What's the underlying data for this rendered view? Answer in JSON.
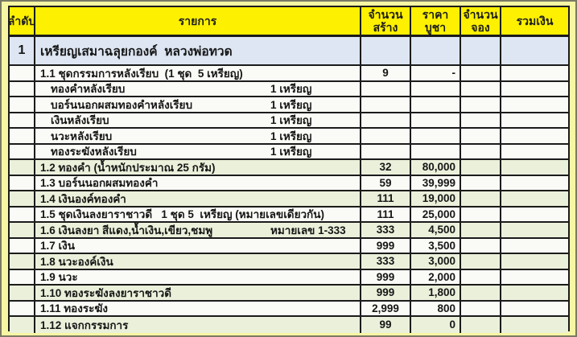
{
  "table": {
    "columns": {
      "no": "ลำดับ",
      "item": "รายการ",
      "made_line1": "จำนวน",
      "made_line2": "สร้าง",
      "price_line1": "ราคา",
      "price_line2": "บูชา",
      "reserved_line1": "จำนวน",
      "reserved_line2": "จอง",
      "total": "รวมเงิน"
    },
    "section": {
      "no": "1",
      "title": "เหรียญเสมาฉลุยกองค์  หลวงพ่อทวด"
    },
    "rows": [
      {
        "item": "1.1 ชุดกรรมการหลังเรียบ  (1 ชุด  5 เหรียญ)",
        "qty": "",
        "made": "9",
        "price": "-",
        "reserved": "",
        "total": "",
        "shade": "plain",
        "level": 1
      },
      {
        "item": "ทองคำหลังเรียบ",
        "qty": "1 เหรียญ",
        "made": "",
        "price": "",
        "reserved": "",
        "total": "",
        "shade": "plain",
        "level": 2
      },
      {
        "item": "บอร์นนอกผสมทองคำหลังเรียบ",
        "qty": "1 เหรียญ",
        "made": "",
        "price": "",
        "reserved": "",
        "total": "",
        "shade": "plain",
        "level": 2
      },
      {
        "item": "เงินหลังเรียบ",
        "qty": "1 เหรียญ",
        "made": "",
        "price": "",
        "reserved": "",
        "total": "",
        "shade": "plain",
        "level": 2
      },
      {
        "item": "นวะหลังเรียบ",
        "qty": "1 เหรียญ",
        "made": "",
        "price": "",
        "reserved": "",
        "total": "",
        "shade": "plain",
        "level": 2
      },
      {
        "item": "ทองระฆังหลังเรียบ",
        "qty": "1 เหรียญ",
        "made": "",
        "price": "",
        "reserved": "",
        "total": "",
        "shade": "plain",
        "level": 2
      },
      {
        "item": "1.2 ทองคำ (น้ำหนักประมาณ 25 กรัม)",
        "qty": "",
        "made": "32",
        "price": "80,000",
        "reserved": "",
        "total": "",
        "shade": "green",
        "level": 1
      },
      {
        "item": "1.3 บอร์นนอกผสมทองคำ",
        "qty": "",
        "made": "59",
        "price": "39,999",
        "reserved": "",
        "total": "",
        "shade": "plain",
        "level": 1
      },
      {
        "item": "1.4 เงินองค์ทองคำ",
        "qty": "",
        "made": "111",
        "price": "19,000",
        "reserved": "",
        "total": "",
        "shade": "green",
        "level": 1
      },
      {
        "item": "1.5 ชุดเงินลงยาราชาวดี   1 ชุด 5  เหรียญ (หมายเลขเดียวกัน)",
        "qty": "",
        "made": "111",
        "price": "25,000",
        "reserved": "",
        "total": "",
        "shade": "plain",
        "level": 1
      },
      {
        "item": "1.6 เงินลงยา สีแดง,น้ำเงิน,เขียว,ชมพู",
        "qty": "หมายเลข 1-333",
        "made": "333",
        "price": "4,500",
        "reserved": "",
        "total": "",
        "shade": "green",
        "level": 1
      },
      {
        "item": "1.7 เงิน",
        "qty": "",
        "made": "999",
        "price": "3,500",
        "reserved": "",
        "total": "",
        "shade": "plain",
        "level": 1
      },
      {
        "item": "1.8 นวะองค์เงิน",
        "qty": "",
        "made": "333",
        "price": "3,000",
        "reserved": "",
        "total": "",
        "shade": "green",
        "level": 1
      },
      {
        "item": "1.9 นวะ",
        "qty": "",
        "made": "999",
        "price": "2,000",
        "reserved": "",
        "total": "",
        "shade": "plain",
        "level": 1
      },
      {
        "item": "1.10 ทองระฆังลงยาราชาวดี",
        "qty": "",
        "made": "999",
        "price": "1,800",
        "reserved": "",
        "total": "",
        "shade": "green",
        "level": 1
      },
      {
        "item": "1.11 ทองระฆัง",
        "qty": "",
        "made": "2,999",
        "price": "800",
        "reserved": "",
        "total": "",
        "shade": "plain",
        "level": 1
      },
      {
        "item": "1.12 แจกกรรมการ",
        "qty": "",
        "made": "99",
        "price": "0",
        "reserved": "",
        "total": "",
        "shade": "green",
        "level": 1
      }
    ],
    "colors": {
      "header_bg": "#fdf000",
      "frame_bg": "#f6f6a3",
      "green_row": "#eaf0da",
      "plain_row": "#fafaf6",
      "section_bg": "#dde6f2",
      "border": "#1b1b1b"
    }
  }
}
